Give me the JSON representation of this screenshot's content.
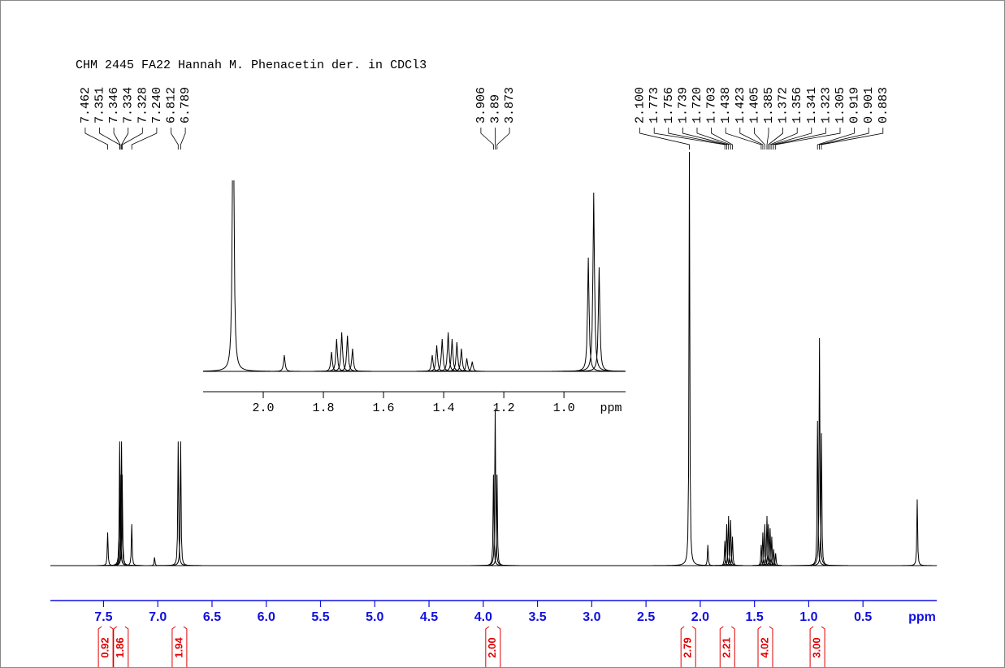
{
  "chart_data": {
    "type": "nmr",
    "title": "CHM 2445 FA22 Hannah M. Phenacetin der. in CDCl3",
    "xlabel": "ppm",
    "xlim": [
      7.99,
      -0.18
    ],
    "xticks": [
      7.5,
      {
        "value": 7,
        "label": "7.0"
      },
      6.5,
      {
        "value": 6,
        "label": "6.0"
      },
      5.5,
      {
        "value": 5,
        "label": "5.0"
      },
      4.5,
      {
        "value": 4,
        "label": "4.0"
      },
      3.5,
      {
        "value": 3,
        "label": "3.0"
      },
      2.5,
      {
        "value": 2,
        "label": "2.0"
      },
      1.5,
      {
        "value": 1,
        "label": "1.0"
      },
      0.5
    ],
    "ylim": [
      0,
      100
    ],
    "peaks": {
      "x": [
        7.462,
        7.351,
        7.346,
        7.334,
        7.328,
        7.24,
        7.03,
        6.812,
        6.789,
        3.906,
        3.89,
        3.873,
        2.1,
        1.93,
        1.773,
        1.756,
        1.739,
        1.72,
        1.703,
        1.438,
        1.423,
        1.405,
        1.385,
        1.372,
        1.356,
        1.341,
        1.323,
        1.305,
        0.919,
        0.901,
        0.883,
        0
      ],
      "heights": [
        8,
        30,
        22,
        30,
        22,
        10,
        2,
        30,
        30,
        22,
        38,
        22,
        100,
        5,
        6,
        10,
        12,
        11,
        7,
        5,
        8,
        10,
        12,
        10,
        9,
        7,
        4,
        3,
        35,
        55,
        32,
        16
      ]
    },
    "peak_labels": [
      7.462,
      7.351,
      7.346,
      7.334,
      7.328,
      {
        "value": 7.24,
        "label": "7.240"
      },
      6.812,
      6.789,
      3.906,
      3.89,
      3.873,
      {
        "value": 2.1,
        "label": "2.100"
      },
      1.773,
      1.756,
      1.739,
      {
        "value": 1.72,
        "label": "1.720"
      },
      1.703,
      1.438,
      1.423,
      1.405,
      1.385,
      1.372,
      1.356,
      1.341,
      1.323,
      1.305,
      0.919,
      0.901,
      0.883
    ],
    "integrals": {
      "x": [
        7.48,
        7.34,
        6.8,
        3.91,
        2.11,
        1.75,
        1.4,
        0.92
      ],
      "values": [
        0.92,
        1.86,
        1.94,
        2,
        2.79,
        2.21,
        4.02,
        3
      ],
      "value_labels": [
        "0.92",
        "1.86",
        "1.94",
        "2.00",
        "2.79",
        "2.21",
        "4.02",
        "3.00"
      ]
    },
    "inset": {
      "xlabel": "ppm",
      "xlim": [
        2.2,
        0.795
      ],
      "xticks": [
        {
          "value": 2,
          "label": "2.0"
        },
        1.8,
        1.6,
        1.4,
        1.2,
        {
          "value": 1,
          "label": "1.0"
        }
      ],
      "ylim": [
        0,
        58
      ]
    },
    "axis_color": "#1010e0",
    "integral_color": "#e00000"
  }
}
